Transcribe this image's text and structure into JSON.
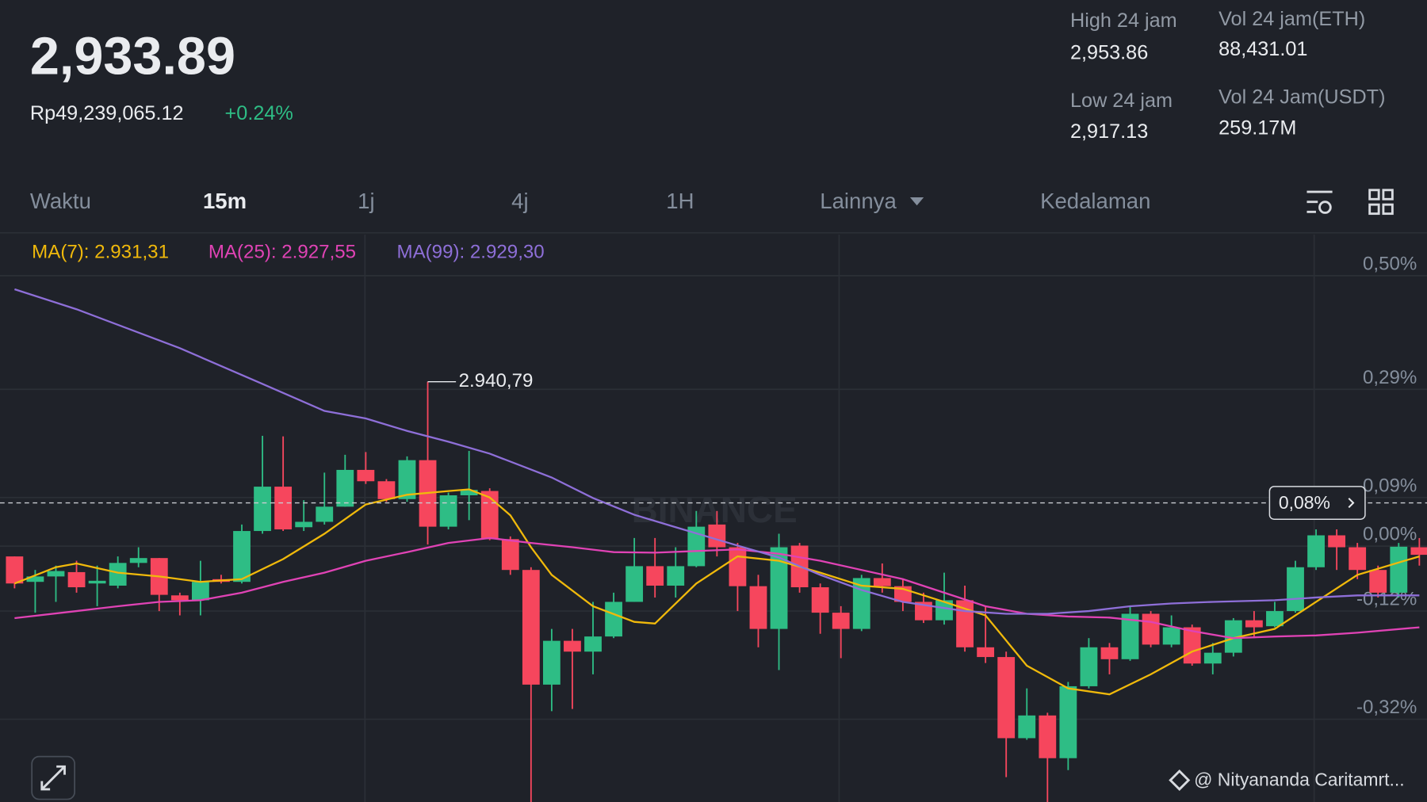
{
  "header": {
    "price": "2,933.89",
    "fiat": "Rp49,239,065.12",
    "change": "+0.24%",
    "stats": [
      {
        "label": "High 24 jam",
        "value": "2,953.86"
      },
      {
        "label": "Vol 24 jam(ETH)",
        "value": "88,431.01"
      },
      {
        "label": "Low 24 jam",
        "value": "2,917.13"
      },
      {
        "label": "Vol 24 Jam(USDT)",
        "value": "259.17M"
      }
    ]
  },
  "tabs": {
    "items": [
      "Waktu",
      "15m",
      "1j",
      "4j",
      "1H",
      "Lainnya",
      "Kedalaman"
    ],
    "active": 1
  },
  "chart_data": {
    "type": "candlestick",
    "up_color": "#2ebd85",
    "down_color": "#f6465d",
    "open": [
      -0.019,
      -0.066,
      -0.056,
      -0.048,
      -0.069,
      -0.073,
      -0.031,
      -0.022,
      -0.091,
      -0.1,
      -0.061,
      -0.066,
      0.028,
      0.11,
      0.035,
      0.045,
      0.073,
      0.141,
      0.12,
      0.087,
      0.159,
      0.036,
      0.094,
      0.102,
      0.013,
      -0.044,
      -0.256,
      -0.175,
      -0.195,
      -0.167,
      -0.103,
      -0.037,
      -0.073,
      -0.037,
      0.04,
      -0.002,
      -0.074,
      -0.153,
      0.001,
      -0.076,
      -0.123,
      -0.153,
      -0.059,
      -0.074,
      -0.103,
      -0.137,
      -0.1,
      -0.187,
      -0.205,
      -0.355,
      -0.313,
      -0.392,
      -0.259,
      -0.187,
      -0.209,
      -0.125,
      -0.182,
      -0.15,
      -0.217,
      -0.197,
      -0.137,
      -0.148,
      -0.12,
      -0.039,
      0.02,
      -0.002,
      -0.044,
      -0.086,
      -0.002
    ],
    "high": [
      -0.019,
      -0.044,
      -0.036,
      -0.027,
      -0.036,
      -0.019,
      -0.002,
      -0.022,
      -0.086,
      -0.027,
      -0.053,
      0.04,
      0.204,
      0.203,
      0.085,
      0.136,
      0.169,
      0.174,
      0.124,
      0.166,
      0.304,
      0.099,
      0.176,
      0.107,
      0.018,
      -0.039,
      -0.153,
      -0.153,
      -0.103,
      -0.086,
      0.015,
      0.015,
      -0.002,
      0.065,
      0.065,
      0.006,
      -0.053,
      0.023,
      0.006,
      -0.069,
      -0.111,
      -0.053,
      -0.032,
      -0.061,
      -0.086,
      -0.049,
      -0.073,
      -0.111,
      -0.195,
      -0.263,
      -0.308,
      -0.251,
      -0.17,
      -0.179,
      -0.111,
      -0.12,
      -0.128,
      -0.145,
      -0.179,
      -0.133,
      -0.12,
      -0.103,
      -0.027,
      0.031,
      0.031,
      0.006,
      -0.036,
      0.006,
      0.015
    ],
    "low": [
      -0.078,
      -0.123,
      -0.103,
      -0.086,
      -0.111,
      -0.078,
      -0.039,
      -0.12,
      -0.128,
      -0.128,
      -0.069,
      -0.069,
      0.023,
      0.028,
      0.028,
      0.04,
      0.073,
      0.115,
      0.082,
      0.082,
      0.003,
      0.031,
      0.048,
      0.011,
      -0.053,
      -0.493,
      -0.305,
      -0.301,
      -0.237,
      -0.17,
      -0.103,
      -0.095,
      -0.095,
      -0.039,
      -0.019,
      -0.12,
      -0.187,
      -0.229,
      -0.086,
      -0.162,
      -0.207,
      -0.157,
      -0.086,
      -0.12,
      -0.142,
      -0.145,
      -0.195,
      -0.216,
      -0.427,
      -0.358,
      -0.493,
      -0.414,
      -0.263,
      -0.237,
      -0.212,
      -0.187,
      -0.187,
      -0.221,
      -0.237,
      -0.204,
      -0.17,
      -0.15,
      -0.123,
      -0.044,
      -0.044,
      -0.061,
      -0.095,
      -0.095,
      -0.036
    ],
    "close": [
      -0.069,
      -0.056,
      -0.046,
      -0.076,
      -0.064,
      -0.031,
      -0.022,
      -0.09,
      -0.1,
      -0.066,
      -0.066,
      0.028,
      0.11,
      0.031,
      0.045,
      0.073,
      0.141,
      0.12,
      0.087,
      0.159,
      0.036,
      0.094,
      0.104,
      0.013,
      -0.044,
      -0.256,
      -0.175,
      -0.195,
      -0.167,
      -0.103,
      -0.037,
      -0.073,
      -0.037,
      0.036,
      -0.002,
      -0.074,
      -0.153,
      -0.002,
      -0.076,
      -0.123,
      -0.153,
      -0.059,
      -0.074,
      -0.103,
      -0.137,
      -0.1,
      -0.187,
      -0.205,
      -0.355,
      -0.313,
      -0.392,
      -0.259,
      -0.187,
      -0.209,
      -0.125,
      -0.182,
      -0.15,
      -0.217,
      -0.197,
      -0.137,
      -0.15,
      -0.12,
      -0.039,
      0.02,
      -0.002,
      -0.044,
      -0.086,
      -0.001,
      -0.016
    ],
    "series": [
      {
        "name": "MA(7): 2.931,31",
        "color": "#f0b90b",
        "x": [
          0,
          2,
          3,
          5,
          7,
          9,
          11,
          13,
          15,
          17,
          19,
          21,
          22,
          23,
          24,
          25,
          26,
          28,
          30,
          31,
          33,
          35,
          37,
          39,
          41,
          43,
          45,
          47,
          49,
          51,
          53,
          55,
          57,
          59,
          61,
          63,
          65,
          68
        ],
        "values": [
          -0.069,
          -0.039,
          -0.032,
          -0.049,
          -0.056,
          -0.066,
          -0.061,
          -0.024,
          0.023,
          0.077,
          0.095,
          0.102,
          0.105,
          0.09,
          0.057,
          -0.002,
          -0.053,
          -0.111,
          -0.14,
          -0.143,
          -0.069,
          -0.019,
          -0.027,
          -0.049,
          -0.073,
          -0.079,
          -0.103,
          -0.128,
          -0.221,
          -0.263,
          -0.274,
          -0.237,
          -0.195,
          -0.17,
          -0.153,
          -0.103,
          -0.053,
          -0.019
        ]
      },
      {
        "name": "MA(25): 2.927,55",
        "color": "#e043b5",
        "x": [
          0,
          3,
          5,
          7,
          9,
          11,
          13,
          15,
          17,
          19,
          21,
          23,
          25,
          27,
          29,
          31,
          33,
          35,
          37,
          39,
          41,
          43,
          45,
          47,
          49,
          51,
          53,
          55,
          57,
          59,
          61,
          63,
          65,
          68
        ],
        "values": [
          -0.133,
          -0.12,
          -0.111,
          -0.103,
          -0.1,
          -0.086,
          -0.066,
          -0.049,
          -0.027,
          -0.011,
          0.006,
          0.015,
          0.006,
          -0.002,
          -0.011,
          -0.012,
          -0.009,
          -0.006,
          -0.014,
          -0.027,
          -0.044,
          -0.061,
          -0.086,
          -0.111,
          -0.125,
          -0.13,
          -0.132,
          -0.14,
          -0.157,
          -0.17,
          -0.167,
          -0.165,
          -0.16,
          -0.15
        ]
      },
      {
        "name": "MA(99): 2.929,30",
        "color": "#8e6fd8",
        "x": [
          0,
          3,
          8,
          12,
          15,
          17,
          19,
          21,
          23,
          26,
          28,
          30,
          32,
          35,
          37,
          39,
          41,
          43,
          46,
          48,
          50,
          52,
          54,
          56,
          58,
          61,
          63,
          65,
          68
        ],
        "values": [
          0.475,
          0.438,
          0.366,
          0.3,
          0.25,
          0.236,
          0.213,
          0.193,
          0.171,
          0.127,
          0.089,
          0.058,
          0.035,
          0.001,
          -0.021,
          -0.053,
          -0.081,
          -0.103,
          -0.12,
          -0.125,
          -0.125,
          -0.12,
          -0.111,
          -0.106,
          -0.103,
          -0.1,
          -0.095,
          -0.091,
          -0.091
        ]
      }
    ],
    "ylim": [
      -0.473,
      0.576
    ],
    "yticks": [
      {
        "value": 0.5,
        "label": "0,50%"
      },
      {
        "value": 0.29,
        "label": "0,29%"
      },
      {
        "value": 0.09,
        "label": "0,09%"
      },
      {
        "value": 0,
        "label": "0,00%"
      },
      {
        "value": -0.12,
        "label": "-0,12%"
      },
      {
        "value": -0.32,
        "label": "-0,32%"
      }
    ],
    "grid": true,
    "high_label": "2.940,79",
    "current": {
      "value": 0.08,
      "label": "0,08%"
    },
    "watermark": "BINANCE"
  },
  "footer": {
    "credit": "@ Nityananda Caritamrt..."
  }
}
